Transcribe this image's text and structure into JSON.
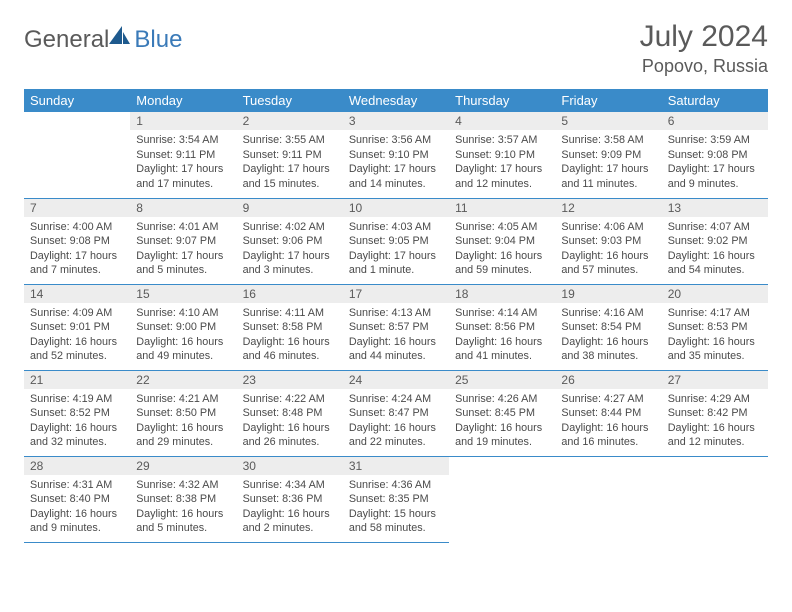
{
  "brand": {
    "part1": "General",
    "part2": "Blue",
    "shape_color": "#1e5a8e"
  },
  "title": {
    "month_year": "July 2024",
    "location": "Popovo, Russia"
  },
  "colors": {
    "header_bg": "#3a8bc9",
    "header_text": "#ffffff",
    "daynum_bg": "#ededed",
    "cell_border": "#3a8bc9",
    "body_text": "#4a4a4a",
    "title_text": "#5a5a5a"
  },
  "dow": [
    "Sunday",
    "Monday",
    "Tuesday",
    "Wednesday",
    "Thursday",
    "Friday",
    "Saturday"
  ],
  "first_day_index": 1,
  "days": [
    {
      "n": 1,
      "sunrise": "3:54 AM",
      "sunset": "9:11 PM",
      "daylight": "17 hours and 17 minutes."
    },
    {
      "n": 2,
      "sunrise": "3:55 AM",
      "sunset": "9:11 PM",
      "daylight": "17 hours and 15 minutes."
    },
    {
      "n": 3,
      "sunrise": "3:56 AM",
      "sunset": "9:10 PM",
      "daylight": "17 hours and 14 minutes."
    },
    {
      "n": 4,
      "sunrise": "3:57 AM",
      "sunset": "9:10 PM",
      "daylight": "17 hours and 12 minutes."
    },
    {
      "n": 5,
      "sunrise": "3:58 AM",
      "sunset": "9:09 PM",
      "daylight": "17 hours and 11 minutes."
    },
    {
      "n": 6,
      "sunrise": "3:59 AM",
      "sunset": "9:08 PM",
      "daylight": "17 hours and 9 minutes."
    },
    {
      "n": 7,
      "sunrise": "4:00 AM",
      "sunset": "9:08 PM",
      "daylight": "17 hours and 7 minutes."
    },
    {
      "n": 8,
      "sunrise": "4:01 AM",
      "sunset": "9:07 PM",
      "daylight": "17 hours and 5 minutes."
    },
    {
      "n": 9,
      "sunrise": "4:02 AM",
      "sunset": "9:06 PM",
      "daylight": "17 hours and 3 minutes."
    },
    {
      "n": 10,
      "sunrise": "4:03 AM",
      "sunset": "9:05 PM",
      "daylight": "17 hours and 1 minute."
    },
    {
      "n": 11,
      "sunrise": "4:05 AM",
      "sunset": "9:04 PM",
      "daylight": "16 hours and 59 minutes."
    },
    {
      "n": 12,
      "sunrise": "4:06 AM",
      "sunset": "9:03 PM",
      "daylight": "16 hours and 57 minutes."
    },
    {
      "n": 13,
      "sunrise": "4:07 AM",
      "sunset": "9:02 PM",
      "daylight": "16 hours and 54 minutes."
    },
    {
      "n": 14,
      "sunrise": "4:09 AM",
      "sunset": "9:01 PM",
      "daylight": "16 hours and 52 minutes."
    },
    {
      "n": 15,
      "sunrise": "4:10 AM",
      "sunset": "9:00 PM",
      "daylight": "16 hours and 49 minutes."
    },
    {
      "n": 16,
      "sunrise": "4:11 AM",
      "sunset": "8:58 PM",
      "daylight": "16 hours and 46 minutes."
    },
    {
      "n": 17,
      "sunrise": "4:13 AM",
      "sunset": "8:57 PM",
      "daylight": "16 hours and 44 minutes."
    },
    {
      "n": 18,
      "sunrise": "4:14 AM",
      "sunset": "8:56 PM",
      "daylight": "16 hours and 41 minutes."
    },
    {
      "n": 19,
      "sunrise": "4:16 AM",
      "sunset": "8:54 PM",
      "daylight": "16 hours and 38 minutes."
    },
    {
      "n": 20,
      "sunrise": "4:17 AM",
      "sunset": "8:53 PM",
      "daylight": "16 hours and 35 minutes."
    },
    {
      "n": 21,
      "sunrise": "4:19 AM",
      "sunset": "8:52 PM",
      "daylight": "16 hours and 32 minutes."
    },
    {
      "n": 22,
      "sunrise": "4:21 AM",
      "sunset": "8:50 PM",
      "daylight": "16 hours and 29 minutes."
    },
    {
      "n": 23,
      "sunrise": "4:22 AM",
      "sunset": "8:48 PM",
      "daylight": "16 hours and 26 minutes."
    },
    {
      "n": 24,
      "sunrise": "4:24 AM",
      "sunset": "8:47 PM",
      "daylight": "16 hours and 22 minutes."
    },
    {
      "n": 25,
      "sunrise": "4:26 AM",
      "sunset": "8:45 PM",
      "daylight": "16 hours and 19 minutes."
    },
    {
      "n": 26,
      "sunrise": "4:27 AM",
      "sunset": "8:44 PM",
      "daylight": "16 hours and 16 minutes."
    },
    {
      "n": 27,
      "sunrise": "4:29 AM",
      "sunset": "8:42 PM",
      "daylight": "16 hours and 12 minutes."
    },
    {
      "n": 28,
      "sunrise": "4:31 AM",
      "sunset": "8:40 PM",
      "daylight": "16 hours and 9 minutes."
    },
    {
      "n": 29,
      "sunrise": "4:32 AM",
      "sunset": "8:38 PM",
      "daylight": "16 hours and 5 minutes."
    },
    {
      "n": 30,
      "sunrise": "4:34 AM",
      "sunset": "8:36 PM",
      "daylight": "16 hours and 2 minutes."
    },
    {
      "n": 31,
      "sunrise": "4:36 AM",
      "sunset": "8:35 PM",
      "daylight": "15 hours and 58 minutes."
    }
  ],
  "labels": {
    "sunrise": "Sunrise:",
    "sunset": "Sunset:",
    "daylight": "Daylight:"
  }
}
